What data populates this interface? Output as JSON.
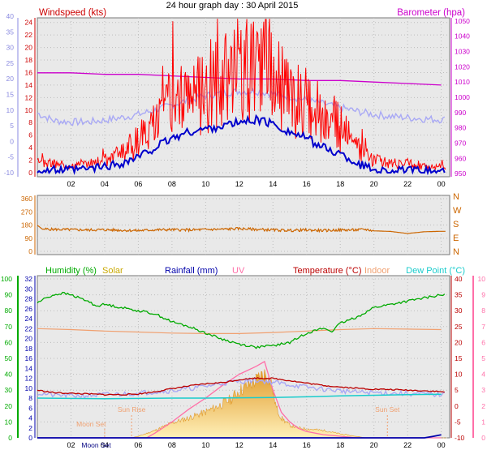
{
  "page_title": "24 hour graph day : 30 April 2015",
  "colors": {
    "windspeed": "#ff0000",
    "windavg": "#0000cc",
    "gust_light": "#a9a9f5",
    "barometer": "#cc00cc",
    "direction": "#cc6600",
    "humidity": "#00aa00",
    "solar": "#f5c84c",
    "solar_dark": "#e09a2a",
    "rainfall": "#0000aa",
    "uv": "#ff6fa8",
    "temperature": "#bb0000",
    "indoor": "#f0a070",
    "dewpoint": "#19cccc",
    "axis_left_wind": "#9a9ae0",
    "axis_humidity": "#00aa00",
    "axis_uv": "#ff6fa8",
    "plot_bg": "#e9e9e9"
  },
  "chart_data": [
    {
      "type": "line",
      "title": "24 hour graph day : 30 April 2015",
      "x_ticks": [
        "02",
        "04",
        "06",
        "08",
        "10",
        "12",
        "14",
        "16",
        "18",
        "20",
        "22",
        "00"
      ],
      "left_axis_label": "Windspeed (kts)",
      "right_axis_label": "Barometer (hpa)",
      "left_ticks": [
        0,
        2,
        4,
        6,
        8,
        10,
        12,
        14,
        16,
        18,
        20,
        22,
        24
      ],
      "left_outer_ticks": [
        -10,
        -5,
        0,
        5,
        10,
        15,
        20,
        25,
        30,
        35,
        40
      ],
      "right_ticks": [
        950,
        960,
        970,
        980,
        990,
        1000,
        1010,
        1020,
        1030,
        1040,
        1050
      ],
      "ylim": [
        0,
        25
      ],
      "ylim_right": [
        948,
        1052
      ],
      "series": [
        {
          "name": "Windspeed (kts)",
          "x": [
            0,
            1,
            2,
            3,
            4,
            5,
            6,
            7,
            8,
            9,
            10,
            11,
            12,
            13,
            14,
            15,
            16,
            17,
            18,
            19,
            20,
            21,
            22,
            23,
            24
          ],
          "values": [
            1.5,
            1.5,
            1.0,
            1.5,
            2.0,
            3.0,
            5.0,
            8.0,
            11.0,
            12.5,
            13.5,
            14.5,
            15.5,
            16.5,
            15.0,
            12.5,
            11.0,
            9.0,
            7.0,
            4.0,
            2.0,
            1.5,
            1.5,
            1.0,
            1.0
          ]
        },
        {
          "x": [
            0,
            1,
            2,
            3,
            4,
            5,
            6,
            7,
            8,
            9,
            10,
            11,
            12,
            13,
            14,
            15,
            16,
            17,
            18,
            19,
            20,
            21,
            22,
            23,
            24
          ],
          "values": [
            0.3,
            0.4,
            0.4,
            0.6,
            1.0,
            1.5,
            2.5,
            4.0,
            5.5,
            6.5,
            7.0,
            7.5,
            8.0,
            8.5,
            7.8,
            6.5,
            5.5,
            4.0,
            3.0,
            1.5,
            0.5,
            0.3,
            0.3,
            0.2,
            0.2
          ]
        },
        {
          "x": [
            0,
            1,
            2,
            3,
            4,
            5,
            6,
            7,
            8,
            9,
            10,
            11,
            12,
            13,
            14,
            15,
            16,
            17,
            18,
            19,
            20,
            21,
            22,
            23,
            24
          ],
          "values": [
            9.5,
            8.3,
            8.1,
            8.1,
            8.4,
            8.8,
            9.3,
            10.0,
            10.8,
            11.6,
            12.3,
            12.7,
            13.0,
            13.0,
            12.6,
            12.2,
            11.6,
            11.0,
            10.4,
            9.8,
            9.3,
            9.0,
            8.8,
            8.6,
            8.5
          ]
        },
        {
          "name": "Barometer (hpa)",
          "x": [
            0,
            2,
            4,
            6,
            8,
            10,
            12,
            14,
            16,
            18,
            20,
            22,
            24
          ],
          "values": [
            1016,
            1016,
            1015,
            1015,
            1014,
            1013,
            1012,
            1012,
            1011,
            1011,
            1010,
            1009,
            1008
          ]
        }
      ]
    },
    {
      "type": "line",
      "x_ticks": [
        "02",
        "04",
        "06",
        "08",
        "10",
        "12",
        "14",
        "16",
        "18",
        "20",
        "22",
        "00"
      ],
      "left_ticks": [
        0,
        90,
        180,
        270,
        360
      ],
      "right_labels": [
        "N",
        "W",
        "S",
        "E",
        "N"
      ],
      "ylim": [
        0,
        360
      ],
      "series": [
        {
          "x": [
            0,
            0.3,
            1,
            2,
            3,
            4,
            5,
            6,
            7,
            8,
            9,
            10,
            11,
            12,
            13,
            14,
            15,
            16,
            17,
            18,
            19,
            19.5,
            20,
            21,
            22,
            23,
            24
          ],
          "values": [
            178,
            152,
            150,
            148,
            146,
            148,
            144,
            142,
            147,
            148,
            146,
            149,
            151,
            155,
            150,
            146,
            143,
            146,
            142,
            146,
            146,
            150,
            140,
            136,
            122,
            134,
            137
          ]
        }
      ]
    },
    {
      "type": "line",
      "x_ticks": [
        "02",
        "04",
        "06",
        "08",
        "10",
        "12",
        "14",
        "16",
        "18",
        "20",
        "22",
        "00"
      ],
      "axis_labels": [
        "Humidity (%)",
        "Solar",
        "Rainfall (mm)",
        "UV",
        "Temperature (°C)",
        "Indoor",
        "Dew Point (°C)"
      ],
      "humidity_ticks": [
        0,
        10,
        20,
        30,
        40,
        50,
        60,
        70,
        80,
        90,
        100
      ],
      "rainfall_ticks": [
        0,
        2,
        4,
        6,
        8,
        10,
        12,
        14,
        16,
        18,
        20,
        22,
        24,
        26,
        28,
        30,
        32
      ],
      "temperature_ticks": [
        -10,
        -5,
        0,
        5,
        10,
        15,
        20,
        25,
        30,
        35,
        40
      ],
      "uv_ticks": [
        0,
        1,
        2,
        3,
        4,
        5,
        6,
        7,
        8,
        9,
        10
      ],
      "annotations": [
        "Sun Rise",
        "Moon Set",
        "Sun Set",
        "Moon Set"
      ],
      "series": [
        {
          "name": "Humidity (%)",
          "x": [
            0,
            0.5,
            1,
            1.5,
            2,
            2.5,
            3,
            3.5,
            4,
            5,
            6,
            7,
            8,
            9,
            10,
            11,
            12,
            13,
            14,
            15,
            16,
            17,
            17.5,
            18,
            18.5,
            19,
            20,
            21,
            22,
            23,
            24
          ],
          "values": [
            85,
            88,
            90,
            91,
            90,
            88,
            86,
            83,
            84,
            82,
            80,
            78,
            73,
            70,
            66,
            62,
            59,
            57,
            58,
            60,
            66,
            69,
            67,
            72,
            74,
            76,
            82,
            84,
            86,
            88,
            90
          ]
        },
        {
          "name": "Temperature (°C)",
          "x": [
            0,
            1,
            2,
            3,
            4,
            5,
            6,
            7,
            8,
            9,
            10,
            11,
            12,
            13,
            14,
            15,
            16,
            17,
            18,
            19,
            20,
            21,
            22,
            23,
            24
          ],
          "values": [
            5.0,
            4.2,
            4.0,
            3.8,
            3.6,
            3.6,
            3.8,
            4.5,
            5.5,
            6.3,
            7.0,
            7.4,
            8.3,
            8.8,
            8.7,
            8.0,
            7.2,
            6.5,
            6.0,
            5.6,
            5.3,
            5.2,
            5.0,
            4.8,
            4.5
          ]
        },
        {
          "name": "Dew Point (°C)",
          "x": [
            0,
            2,
            4,
            6,
            8,
            10,
            12,
            14,
            16,
            18,
            20,
            22,
            24
          ],
          "values": [
            2.5,
            2.4,
            2.3,
            2.4,
            2.5,
            2.5,
            2.6,
            2.7,
            2.9,
            3.2,
            3.4,
            3.6,
            3.7
          ]
        },
        {
          "name": "Indoor",
          "x": [
            0,
            2,
            4,
            6,
            8,
            10,
            12,
            14,
            16,
            18,
            20,
            22,
            24
          ],
          "values": [
            22.0,
            21.8,
            21.5,
            21.3,
            21.1,
            21.0,
            21.0,
            21.2,
            21.5,
            21.8,
            22.0,
            21.9,
            21.8
          ]
        },
        {
          "x": [
            0,
            1,
            2,
            3,
            4,
            5,
            6,
            7,
            8,
            9,
            10,
            11,
            12,
            13,
            14,
            15,
            16,
            17,
            18,
            19,
            20,
            21,
            22,
            23,
            24
          ],
          "values": [
            9.0,
            8.6,
            8.5,
            8.5,
            8.7,
            8.8,
            9.0,
            9.3,
            9.5,
            9.9,
            10.4,
            11.0,
            11.4,
            11.6,
            11.2,
            10.7,
            10.2,
            9.8,
            9.5,
            9.2,
            9.1,
            9.0,
            8.9,
            8.8,
            8.7
          ]
        },
        {
          "name": "Solar",
          "x": [
            0,
            5.5,
            6,
            7,
            8,
            9,
            10,
            11,
            11.5,
            12,
            12.5,
            13,
            13.3,
            13.6,
            13.9,
            14.2,
            14.5,
            15,
            15.5,
            16,
            17,
            18,
            19.5,
            24
          ],
          "values": [
            0,
            0,
            0.3,
            1.5,
            3.0,
            4.0,
            5.2,
            6.8,
            7.8,
            9.5,
            10.5,
            11.5,
            12.5,
            13.0,
            11.0,
            6.0,
            4.0,
            2.5,
            2.0,
            1.8,
            1.5,
            0.8,
            0,
            0
          ]
        },
        {
          "name": "UV",
          "x": [
            0,
            6.5,
            7,
            8,
            9,
            10,
            11,
            12,
            13,
            13.5,
            14,
            14.5,
            15,
            15.5,
            16,
            17,
            18,
            19,
            24
          ],
          "values": [
            0,
            0,
            0.3,
            1.0,
            1.8,
            2.5,
            3.3,
            4.0,
            4.5,
            4.8,
            3.0,
            1.6,
            1.0,
            0.6,
            0.4,
            0.2,
            0.1,
            0,
            0
          ]
        },
        {
          "name": "Rainfall (mm)",
          "x": [
            0,
            23,
            23.5,
            24
          ],
          "values": [
            0,
            0,
            0.3,
            0.6
          ]
        }
      ]
    }
  ]
}
